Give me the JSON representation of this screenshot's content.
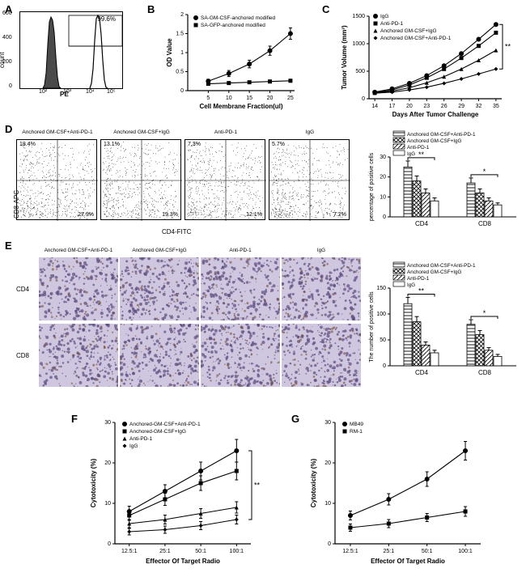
{
  "colors": {
    "black": "#000000",
    "grid": "#666666",
    "fill_dark": "#4a4a4a",
    "fill_light": "#ffffff",
    "hatch_cross": "#777",
    "ihc_purple": "#8b7da8",
    "ihc_dark": "#5a4a7a"
  },
  "panelA": {
    "label": "A",
    "xlabel": "PE",
    "ylabel": "count",
    "gate_value": "99.6%",
    "ymax": 600,
    "yticks": [
      0,
      200,
      400,
      600
    ],
    "x_log_ticks": [
      "10²",
      "10³",
      "10⁴",
      "10⁵"
    ]
  },
  "panelB": {
    "label": "B",
    "xlabel": "Cell Membrane Fraction(ul)",
    "ylabel": "OD Value",
    "series": [
      {
        "name": "SA-GM-CSF-anchored modified",
        "marker": "circle_solid",
        "x": [
          5,
          10,
          15,
          20,
          25
        ],
        "y": [
          0.25,
          0.45,
          0.7,
          1.05,
          1.5
        ],
        "err": [
          0.05,
          0.08,
          0.1,
          0.12,
          0.15
        ]
      },
      {
        "name": "SA-GFP-anchored modified",
        "marker": "square_solid",
        "x": [
          5,
          10,
          15,
          20,
          25
        ],
        "y": [
          0.18,
          0.2,
          0.22,
          0.24,
          0.26
        ],
        "err": [
          0.03,
          0.03,
          0.03,
          0.03,
          0.03
        ]
      }
    ],
    "xlim": [
      0,
      26
    ],
    "ylim": [
      0,
      2.0
    ],
    "xticks": [
      5,
      10,
      15,
      20,
      25
    ],
    "yticks": [
      0.0,
      0.5,
      1.0,
      1.5,
      2.0
    ]
  },
  "panelC": {
    "label": "C",
    "xlabel": "Days After Tumor Challenge",
    "ylabel": "Tumor Volume (mm³)",
    "sig": "**",
    "series": [
      {
        "name": "IgG",
        "marker": "circle",
        "x": [
          14,
          17,
          20,
          23,
          26,
          29,
          32,
          35
        ],
        "y": [
          120,
          180,
          280,
          420,
          600,
          820,
          1080,
          1350
        ]
      },
      {
        "name": "Anti-PD-1",
        "marker": "square",
        "x": [
          14,
          17,
          20,
          23,
          26,
          29,
          32,
          35
        ],
        "y": [
          110,
          160,
          250,
          380,
          540,
          740,
          960,
          1200
        ]
      },
      {
        "name": "Anchored GM-CSF+IgG",
        "marker": "triangle",
        "x": [
          14,
          17,
          20,
          23,
          26,
          29,
          32,
          35
        ],
        "y": [
          105,
          140,
          200,
          290,
          400,
          540,
          700,
          880
        ]
      },
      {
        "name": "Anchored GM-CSF+Anti-PD-1",
        "marker": "diamond",
        "x": [
          14,
          17,
          20,
          23,
          26,
          29,
          32,
          35
        ],
        "y": [
          100,
          120,
          160,
          210,
          280,
          360,
          450,
          540
        ]
      }
    ],
    "xlim": [
      13,
      36
    ],
    "ylim": [
      0,
      1500
    ],
    "xticks": [
      14,
      17,
      20,
      23,
      26,
      29,
      32,
      35
    ],
    "yticks": [
      0,
      500,
      1000,
      1500
    ]
  },
  "panelD": {
    "label": "D",
    "xlabel": "CD4-FITC",
    "ylabel": "CD8-APC",
    "plots": [
      {
        "title": "Anchored GM-CSF+Anti-PD-1",
        "q1": "18.4%",
        "q4": "27.9%"
      },
      {
        "title": "Anchored GM-CSF+IgG",
        "q1": "13.1%",
        "q4": "19.3%"
      },
      {
        "title": "Anti-PD-1",
        "q1": "7.3%",
        "q4": "12.1%"
      },
      {
        "title": "IgG",
        "q1": "5.7%",
        "q4": "7.2%"
      }
    ],
    "bar": {
      "ylabel": "percentage of positive cells",
      "cats": [
        "CD4",
        "CD8"
      ],
      "groups": [
        "Anchored GM-CSF+Anti-PD-1",
        "Anchored GM-CSF+IgG",
        "Anti-PD-1",
        "IgG"
      ],
      "patterns": [
        "horiz",
        "cross",
        "diag",
        "white"
      ],
      "values": {
        "CD4": [
          25,
          18,
          12,
          8
        ],
        "CD8": [
          17,
          12,
          8,
          6
        ]
      },
      "err": {
        "CD4": [
          3,
          2.5,
          2,
          1.5
        ],
        "CD8": [
          2.5,
          2,
          1.5,
          1
        ]
      },
      "sig": {
        "CD4": "**",
        "CD8": "*"
      },
      "ylim": [
        0,
        30
      ],
      "yticks": [
        0,
        10,
        20,
        30
      ]
    }
  },
  "panelE": {
    "label": "E",
    "cols": [
      "Anchored GM-CSF+Anti-PD-1",
      "Anchored GM-CSF+IgG",
      "Anti-PD-1",
      "IgG"
    ],
    "rows": [
      "CD4",
      "CD8"
    ],
    "bar": {
      "ylabel": "The number of positive cells",
      "cats": [
        "CD4",
        "CD8"
      ],
      "groups": [
        "Anchored GM-CSF+Anti-PD-1",
        "Anchored GM-CSF+IgG",
        "Anti-PD-1",
        "IgG"
      ],
      "patterns": [
        "horiz",
        "cross",
        "diag",
        "white"
      ],
      "values": {
        "CD4": [
          120,
          85,
          40,
          25
        ],
        "CD8": [
          80,
          60,
          30,
          18
        ]
      },
      "err": {
        "CD4": [
          12,
          10,
          6,
          5
        ],
        "CD8": [
          9,
          8,
          5,
          4
        ]
      },
      "sig": {
        "CD4": "**",
        "CD8": "*"
      },
      "ylim": [
        0,
        150
      ],
      "yticks": [
        0,
        50,
        100,
        150
      ]
    }
  },
  "panelF": {
    "label": "F",
    "xlabel": "Effector Of Target Radio",
    "ylabel": "Cytotoxicity (%)",
    "sig": "**",
    "series": [
      {
        "name": "Anchored-GM-CSF+Anti-PD-1",
        "marker": "circle",
        "x": [
          1,
          2,
          3,
          4
        ],
        "y": [
          8,
          13,
          18,
          23
        ],
        "err": [
          1.3,
          1.6,
          2.2,
          2.8
        ]
      },
      {
        "name": "Anchored-GM-CSF+IgG",
        "marker": "square",
        "x": [
          1,
          2,
          3,
          4
        ],
        "y": [
          7,
          11,
          15,
          18
        ],
        "err": [
          1.2,
          1.5,
          1.8,
          2.2
        ]
      },
      {
        "name": "Anti-PD-1",
        "marker": "triangle",
        "x": [
          1,
          2,
          3,
          4
        ],
        "y": [
          5,
          6,
          7.5,
          9
        ],
        "err": [
          1,
          1.1,
          1.2,
          1.4
        ]
      },
      {
        "name": "IgG",
        "marker": "diamond",
        "x": [
          1,
          2,
          3,
          4
        ],
        "y": [
          3,
          3.5,
          4.5,
          6
        ],
        "err": [
          0.8,
          0.9,
          1.0,
          1.1
        ]
      }
    ],
    "xticks_labels": [
      "12.5:1",
      "25:1",
      "50:1",
      "100:1"
    ],
    "ylim": [
      0,
      30
    ],
    "yticks": [
      0,
      10,
      20,
      30
    ]
  },
  "panelG": {
    "label": "G",
    "xlabel": "Effector Of Target Radio",
    "ylabel": "Cytotoxicity (%)",
    "series": [
      {
        "name": "MB49",
        "marker": "circle",
        "x": [
          1,
          2,
          3,
          4
        ],
        "y": [
          7,
          11,
          16,
          23
        ],
        "err": [
          1.1,
          1.4,
          1.8,
          2.3
        ]
      },
      {
        "name": "RM-1",
        "marker": "square",
        "x": [
          1,
          2,
          3,
          4
        ],
        "y": [
          4,
          5,
          6.5,
          8
        ],
        "err": [
          0.9,
          1.0,
          1.0,
          1.2
        ]
      }
    ],
    "xticks_labels": [
      "12.5:1",
      "25:1",
      "50:1",
      "100:1"
    ],
    "ylim": [
      0,
      30
    ],
    "yticks": [
      0,
      10,
      20,
      30
    ]
  }
}
